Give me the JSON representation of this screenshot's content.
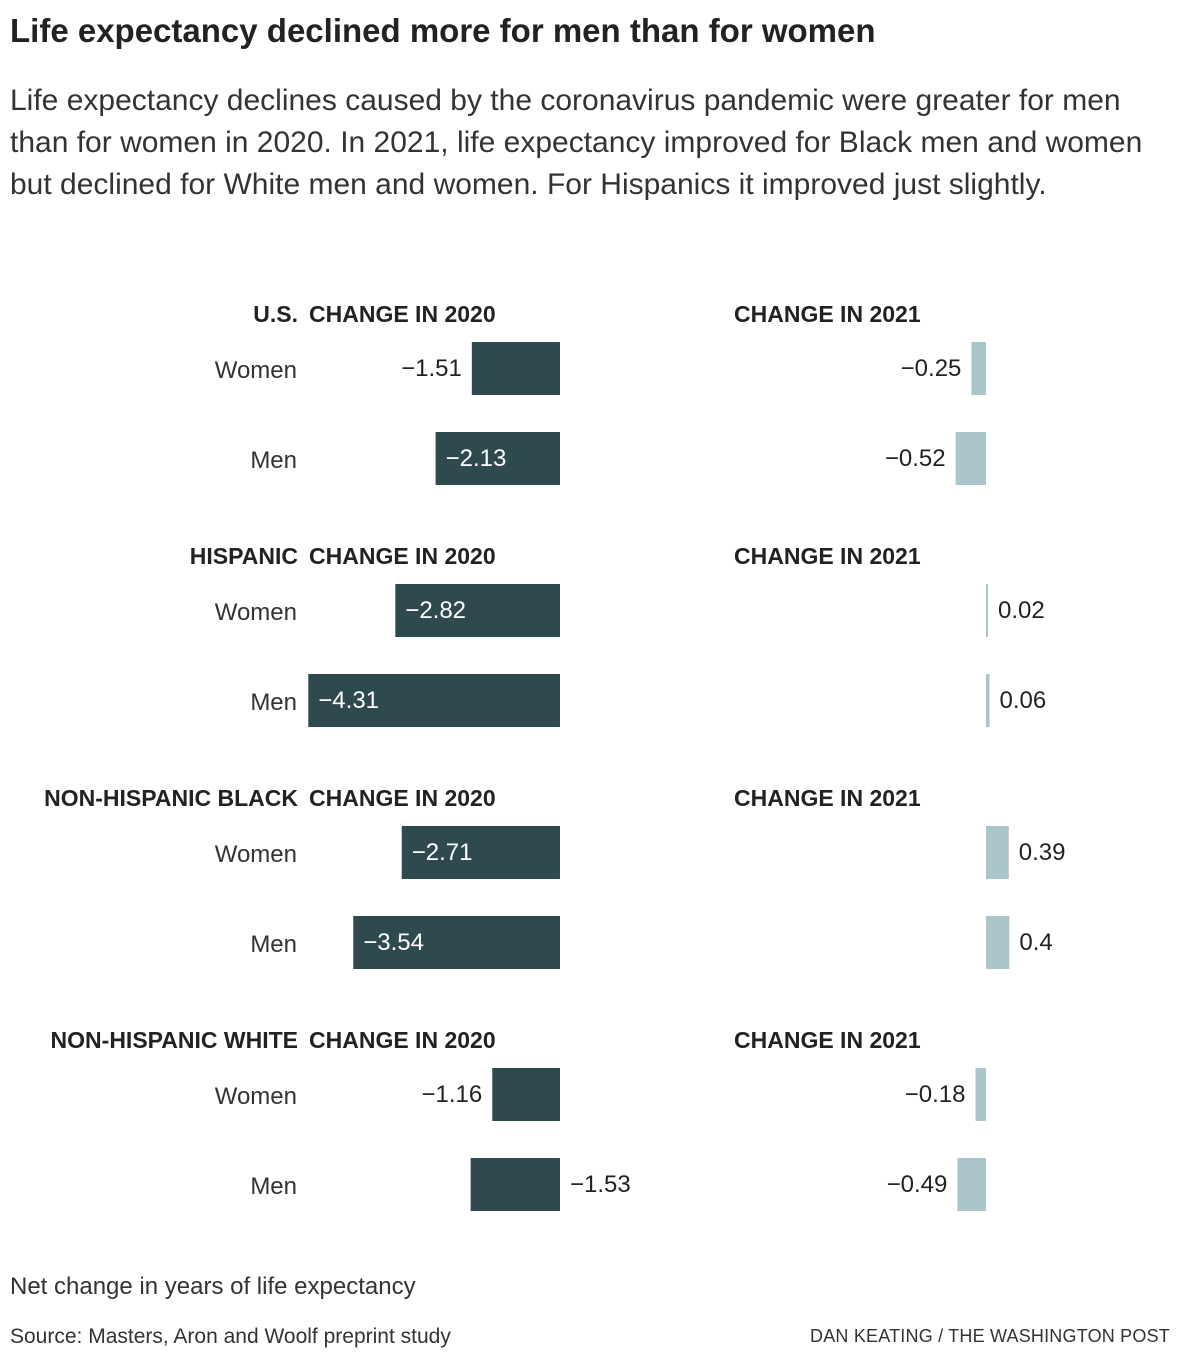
{
  "header": {
    "title": "Life expectancy declined more for men than for women",
    "subtitle": "Life expectancy declines caused by the coronavirus pandemic were greater for men than for women in 2020. In 2021, life expectancy improved for Black men and women but declined for White men and women. For Hispanics it improved just slightly."
  },
  "footer": {
    "note": "Net change in years of life expectancy",
    "source": "Source: Masters, Aron and Woolf preprint study",
    "credit": "DAN KEATING / THE WASHINGTON POST"
  },
  "colors": {
    "bar_2020": "#2f4a4f",
    "bar_2021": "#a9c5c9",
    "text": "#222222",
    "label_inside": "#ffffff"
  },
  "chart_data": {
    "type": "bar",
    "orientation": "horizontal",
    "unit": "Net change in years of life expectancy",
    "column_titles": [
      "CHANGE IN 2020",
      "CHANGE IN 2021"
    ],
    "series_colors": [
      "#2f4a4f",
      "#a9c5c9"
    ],
    "groups": [
      {
        "name": "U.S.",
        "categories": [
          "Women",
          "Men"
        ],
        "change_2020": [
          -1.51,
          -2.13
        ],
        "change_2021": [
          -0.25,
          -0.52
        ],
        "labels_2020": [
          "−1.51",
          "−2.13"
        ],
        "labels_2021": [
          "−0.25",
          "−0.52"
        ]
      },
      {
        "name": "HISPANIC",
        "categories": [
          "Women",
          "Men"
        ],
        "change_2020": [
          -2.82,
          -4.31
        ],
        "change_2021": [
          0.02,
          0.06
        ],
        "labels_2020": [
          "−2.82",
          "−4.31"
        ],
        "labels_2021": [
          "0.02",
          "0.06"
        ]
      },
      {
        "name": "NON-HISPANIC BLACK",
        "categories": [
          "Women",
          "Men"
        ],
        "change_2020": [
          -2.71,
          -3.54
        ],
        "change_2021": [
          0.39,
          0.4
        ],
        "labels_2020": [
          "−2.71",
          "−3.54"
        ],
        "labels_2021": [
          "0.39",
          "0.4"
        ]
      },
      {
        "name": "NON-HISPANIC WHITE",
        "categories": [
          "Women",
          "Men"
        ],
        "change_2020": [
          -1.16,
          -1.53
        ],
        "change_2021": [
          -0.18,
          -0.49
        ],
        "labels_2020": [
          "−1.16",
          "−1.53"
        ],
        "labels_2021": [
          "−0.18",
          "−0.49"
        ]
      }
    ]
  }
}
